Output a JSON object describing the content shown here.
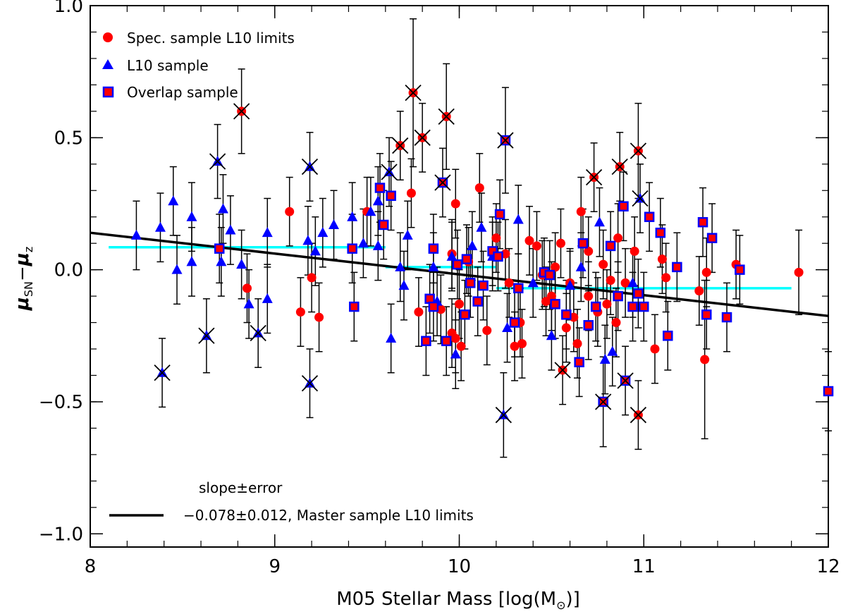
{
  "chart_data": {
    "type": "scatter",
    "xlabel": "M05 Stellar Mass [log(M",
    "xlabel_sub": "⊙",
    "xlabel_end": ")]",
    "ylabel_mu": "μ",
    "ylabel_sub1": "SN",
    "ylabel_minus": "−",
    "ylabel_sub2": "z",
    "xlim": [
      8,
      12
    ],
    "ylim": [
      -1.05,
      1.0
    ],
    "x_ticks": [
      8,
      9,
      10,
      11,
      12
    ],
    "x_tick_labels": [
      "8",
      "9",
      "10",
      "11",
      "12"
    ],
    "y_ticks": [
      -1.0,
      -0.5,
      0.0,
      0.5,
      1.0
    ],
    "y_tick_labels": [
      "−1.0",
      "−0.5",
      "0.0",
      "0.5",
      "1.0"
    ],
    "legend_position": "top-left",
    "legend": [
      {
        "label": "Spec. sample L10 limits",
        "marker": "circle",
        "color": "#ff0000"
      },
      {
        "label": "L10 sample",
        "marker": "triangle",
        "color": "#0000ff"
      },
      {
        "label": "Overlap sample",
        "marker": "square",
        "color": "#ff0000",
        "edge": "#0000ff"
      }
    ],
    "fit_legend_title": "slope±error",
    "fit_legend_label": "−0.078±0.012, Master sample L10 limits",
    "fit_line": {
      "x": [
        8.0,
        12.0
      ],
      "y": [
        0.14,
        -0.175
      ],
      "color": "#000000"
    },
    "binned_lines": [
      {
        "x": [
          8.1,
          9.6
        ],
        "y": [
          0.085,
          0.085
        ],
        "color": "#00ffff"
      },
      {
        "x": [
          9.6,
          10.2
        ],
        "y": [
          0.01,
          0.01
        ],
        "color": "#00ffff"
      },
      {
        "x": [
          10.2,
          11.8
        ],
        "y": [
          -0.07,
          -0.07
        ],
        "color": "#00ffff"
      }
    ],
    "series": [
      {
        "name": "Spec. sample L10 limits",
        "marker": "circle",
        "color": "#ff0000",
        "points": [
          [
            8.82,
            0.6,
            0.16,
            1
          ],
          [
            9.08,
            0.22,
            0.13,
            0
          ],
          [
            9.14,
            -0.16,
            0.13,
            0
          ],
          [
            9.2,
            -0.03,
            0.13,
            0
          ],
          [
            9.24,
            -0.18,
            0.13,
            0
          ],
          [
            8.85,
            -0.07,
            0.13,
            0
          ],
          [
            9.5,
            0.22,
            0.13,
            0
          ],
          [
            9.68,
            0.47,
            0.13,
            1
          ],
          [
            9.75,
            0.67,
            0.28,
            1
          ],
          [
            9.8,
            0.5,
            0.13,
            1
          ],
          [
            9.93,
            0.58,
            0.2,
            1
          ],
          [
            9.74,
            0.29,
            0.13,
            0
          ],
          [
            9.98,
            0.25,
            0.13,
            0
          ],
          [
            10.11,
            0.31,
            0.13,
            0
          ],
          [
            9.98,
            -0.26,
            0.13,
            0
          ],
          [
            10.0,
            -0.13,
            0.13,
            0
          ],
          [
            10.05,
            0.03,
            0.13,
            0
          ],
          [
            10.15,
            -0.23,
            0.13,
            0
          ],
          [
            10.2,
            0.12,
            0.13,
            0
          ],
          [
            10.25,
            0.06,
            0.13,
            0
          ],
          [
            10.34,
            -0.28,
            0.13,
            0
          ],
          [
            10.38,
            0.11,
            0.13,
            0
          ],
          [
            10.42,
            0.09,
            0.13,
            0
          ],
          [
            10.45,
            -0.02,
            0.13,
            0
          ],
          [
            10.5,
            -0.1,
            0.13,
            0
          ],
          [
            10.55,
            0.1,
            0.13,
            0
          ],
          [
            10.56,
            -0.38,
            0.13,
            1
          ],
          [
            10.6,
            -0.05,
            0.13,
            0
          ],
          [
            10.64,
            -0.28,
            0.13,
            0
          ],
          [
            10.66,
            0.22,
            0.13,
            0
          ],
          [
            10.7,
            0.07,
            0.13,
            0
          ],
          [
            10.73,
            0.35,
            0.13,
            1
          ],
          [
            10.78,
            0.02,
            0.13,
            0
          ],
          [
            10.82,
            -0.04,
            0.13,
            0
          ],
          [
            10.86,
            0.12,
            0.13,
            0
          ],
          [
            10.87,
            0.39,
            0.13,
            1
          ],
          [
            10.95,
            0.07,
            0.13,
            0
          ],
          [
            10.97,
            0.45,
            0.18,
            1
          ],
          [
            10.97,
            -0.55,
            0.13,
            1
          ],
          [
            11.06,
            -0.3,
            0.13,
            0
          ],
          [
            11.1,
            0.04,
            0.13,
            0
          ],
          [
            11.12,
            -0.03,
            0.13,
            0
          ],
          [
            11.3,
            -0.08,
            0.13,
            0
          ],
          [
            11.33,
            -0.34,
            0.3,
            0
          ],
          [
            11.34,
            -0.01,
            0.13,
            0
          ],
          [
            11.5,
            0.02,
            0.13,
            0
          ],
          [
            11.84,
            -0.01,
            0.16,
            0
          ],
          [
            10.27,
            -0.05,
            0.13,
            0
          ],
          [
            10.62,
            -0.18,
            0.13,
            0
          ],
          [
            10.7,
            -0.1,
            0.13,
            0
          ],
          [
            10.8,
            -0.13,
            0.13,
            0
          ],
          [
            10.9,
            -0.05,
            0.13,
            0
          ],
          [
            9.9,
            -0.15,
            0.13,
            0
          ],
          [
            9.96,
            -0.24,
            0.13,
            0
          ],
          [
            10.01,
            -0.29,
            0.13,
            0
          ],
          [
            9.96,
            0.06,
            0.13,
            0
          ],
          [
            10.33,
            -0.2,
            0.13,
            0
          ],
          [
            10.3,
            -0.29,
            0.13,
            0
          ],
          [
            10.47,
            -0.12,
            0.13,
            0
          ],
          [
            10.52,
            0.01,
            0.13,
            0
          ],
          [
            10.58,
            -0.22,
            0.13,
            0
          ],
          [
            10.75,
            -0.16,
            0.13,
            0
          ],
          [
            10.85,
            -0.2,
            0.13,
            0
          ],
          [
            9.78,
            -0.16,
            0.13,
            0
          ]
        ]
      },
      {
        "name": "L10 sample",
        "marker": "triangle",
        "color": "#0000ff",
        "points": [
          [
            8.25,
            0.13,
            0.13,
            0
          ],
          [
            8.38,
            0.16,
            0.13,
            0
          ],
          [
            8.39,
            -0.39,
            0.13,
            1
          ],
          [
            8.45,
            0.26,
            0.13,
            0
          ],
          [
            8.47,
            0.0,
            0.13,
            0
          ],
          [
            8.55,
            0.2,
            0.13,
            0
          ],
          [
            8.55,
            0.03,
            0.13,
            0
          ],
          [
            8.63,
            -0.25,
            0.14,
            1
          ],
          [
            8.69,
            0.41,
            0.14,
            1
          ],
          [
            8.72,
            0.23,
            0.13,
            0
          ],
          [
            8.71,
            0.03,
            0.13,
            0
          ],
          [
            8.76,
            0.15,
            0.13,
            0
          ],
          [
            8.82,
            0.02,
            0.13,
            0
          ],
          [
            8.86,
            -0.13,
            0.13,
            0
          ],
          [
            8.91,
            -0.24,
            0.13,
            1
          ],
          [
            8.96,
            0.14,
            0.13,
            0
          ],
          [
            8.96,
            -0.11,
            0.13,
            0
          ],
          [
            9.18,
            0.11,
            0.13,
            0
          ],
          [
            9.19,
            0.39,
            0.13,
            1
          ],
          [
            9.19,
            -0.43,
            0.13,
            1
          ],
          [
            9.22,
            0.07,
            0.13,
            0
          ],
          [
            9.26,
            0.14,
            0.13,
            0
          ],
          [
            9.32,
            0.17,
            0.13,
            0
          ],
          [
            9.42,
            0.2,
            0.13,
            0
          ],
          [
            9.48,
            0.1,
            0.13,
            0
          ],
          [
            9.52,
            0.22,
            0.13,
            0
          ],
          [
            9.56,
            0.26,
            0.13,
            0
          ],
          [
            9.62,
            0.37,
            0.13,
            1
          ],
          [
            9.63,
            -0.26,
            0.13,
            0
          ],
          [
            9.68,
            0.01,
            0.13,
            0
          ],
          [
            9.7,
            -0.06,
            0.13,
            0
          ],
          [
            9.72,
            0.13,
            0.13,
            0
          ],
          [
            9.86,
            0.01,
            0.13,
            0
          ],
          [
            9.96,
            0.05,
            0.13,
            0
          ],
          [
            9.98,
            -0.32,
            0.13,
            0
          ],
          [
            10.07,
            0.09,
            0.13,
            0
          ],
          [
            10.12,
            0.16,
            0.13,
            0
          ],
          [
            10.18,
            0.05,
            0.13,
            0
          ],
          [
            10.24,
            -0.55,
            0.16,
            1
          ],
          [
            10.26,
            -0.22,
            0.13,
            0
          ],
          [
            10.32,
            0.19,
            0.13,
            0
          ],
          [
            10.4,
            -0.05,
            0.13,
            0
          ],
          [
            10.5,
            -0.25,
            0.13,
            0
          ],
          [
            10.6,
            -0.06,
            0.13,
            0
          ],
          [
            10.66,
            0.01,
            0.13,
            0
          ],
          [
            10.76,
            0.18,
            0.13,
            0
          ],
          [
            10.79,
            -0.34,
            0.13,
            0
          ],
          [
            10.83,
            -0.31,
            0.13,
            0
          ],
          [
            10.98,
            0.27,
            0.13,
            1
          ],
          [
            10.94,
            -0.05,
            0.13,
            0
          ],
          [
            9.56,
            0.09,
            0.13,
            0
          ],
          [
            9.88,
            -0.12,
            0.13,
            0
          ]
        ]
      },
      {
        "name": "Overlap sample",
        "marker": "square",
        "color": "#ff0000",
        "edge": "#0000ff",
        "points": [
          [
            8.7,
            0.08,
            0.13,
            0
          ],
          [
            9.42,
            0.08,
            0.13,
            0
          ],
          [
            9.43,
            -0.14,
            0.13,
            0
          ],
          [
            9.57,
            0.31,
            0.13,
            0
          ],
          [
            9.59,
            0.17,
            0.13,
            0
          ],
          [
            9.63,
            0.28,
            0.13,
            0
          ],
          [
            9.82,
            -0.27,
            0.13,
            0
          ],
          [
            9.84,
            -0.11,
            0.13,
            0
          ],
          [
            9.86,
            -0.14,
            0.13,
            0
          ],
          [
            9.86,
            0.08,
            0.13,
            0
          ],
          [
            9.91,
            0.33,
            0.13,
            1
          ],
          [
            9.93,
            -0.27,
            0.13,
            0
          ],
          [
            9.99,
            0.02,
            0.13,
            0
          ],
          [
            10.03,
            -0.17,
            0.13,
            0
          ],
          [
            10.04,
            0.04,
            0.13,
            0
          ],
          [
            10.06,
            -0.05,
            0.13,
            0
          ],
          [
            10.1,
            -0.12,
            0.13,
            0
          ],
          [
            10.13,
            -0.06,
            0.13,
            0
          ],
          [
            10.18,
            0.07,
            0.13,
            0
          ],
          [
            10.21,
            0.05,
            0.13,
            0
          ],
          [
            10.22,
            0.21,
            0.13,
            0
          ],
          [
            10.25,
            0.49,
            0.2,
            1
          ],
          [
            10.3,
            -0.2,
            0.13,
            0
          ],
          [
            10.32,
            -0.07,
            0.13,
            0
          ],
          [
            10.46,
            -0.01,
            0.13,
            0
          ],
          [
            10.49,
            -0.02,
            0.13,
            0
          ],
          [
            10.52,
            -0.13,
            0.13,
            0
          ],
          [
            10.65,
            -0.35,
            0.13,
            0
          ],
          [
            10.67,
            0.1,
            0.13,
            0
          ],
          [
            10.7,
            -0.21,
            0.13,
            0
          ],
          [
            10.74,
            -0.14,
            0.13,
            0
          ],
          [
            10.78,
            -0.5,
            0.17,
            1
          ],
          [
            10.82,
            0.09,
            0.13,
            0
          ],
          [
            10.89,
            0.24,
            0.13,
            0
          ],
          [
            10.9,
            -0.42,
            0.13,
            1
          ],
          [
            10.94,
            -0.14,
            0.13,
            0
          ],
          [
            10.97,
            -0.09,
            0.13,
            0
          ],
          [
            11.03,
            0.2,
            0.13,
            0
          ],
          [
            11.09,
            0.14,
            0.13,
            0
          ],
          [
            11.13,
            -0.25,
            0.13,
            0
          ],
          [
            11.18,
            0.01,
            0.13,
            0
          ],
          [
            11.32,
            0.18,
            0.13,
            0
          ],
          [
            11.34,
            -0.17,
            0.13,
            0
          ],
          [
            11.37,
            0.12,
            0.13,
            0
          ],
          [
            11.45,
            -0.18,
            0.13,
            0
          ],
          [
            11.52,
            0.0,
            0.13,
            0
          ],
          [
            12.0,
            -0.46,
            0.15,
            0
          ],
          [
            11.0,
            -0.14,
            0.13,
            0
          ],
          [
            10.58,
            -0.17,
            0.13,
            0
          ],
          [
            10.86,
            -0.1,
            0.13,
            0
          ]
        ]
      }
    ]
  }
}
